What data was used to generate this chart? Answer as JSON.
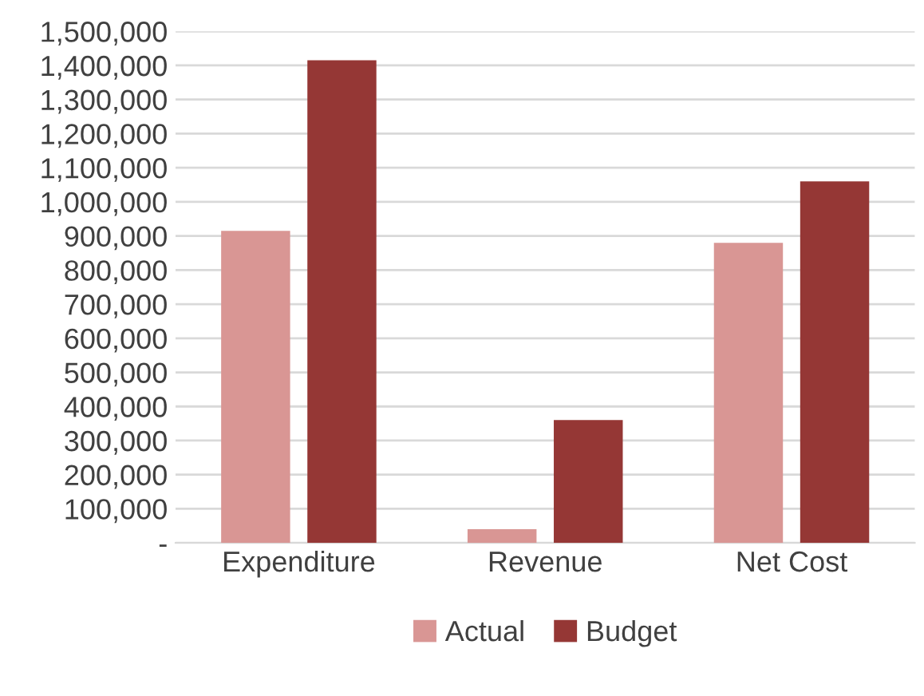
{
  "chart_data": {
    "type": "bar",
    "categories": [
      "Expenditure",
      "Revenue",
      "Net Cost"
    ],
    "series": [
      {
        "name": "Actual",
        "color": "#d99694",
        "values": [
          915000,
          40000,
          880000
        ]
      },
      {
        "name": "Budget",
        "color": "#953735",
        "values": [
          1415000,
          360000,
          1060000
        ]
      }
    ],
    "ylim": [
      0,
      1500000
    ],
    "yticks": [
      {
        "value": 0,
        "label": "-"
      },
      {
        "value": 100000,
        "label": "100,000"
      },
      {
        "value": 200000,
        "label": "200,000"
      },
      {
        "value": 300000,
        "label": "300,000"
      },
      {
        "value": 400000,
        "label": "400,000"
      },
      {
        "value": 500000,
        "label": "500,000"
      },
      {
        "value": 600000,
        "label": "600,000"
      },
      {
        "value": 700000,
        "label": "700,000"
      },
      {
        "value": 800000,
        "label": "800,000"
      },
      {
        "value": 900000,
        "label": "900,000"
      },
      {
        "value": 1000000,
        "label": "1,000,000"
      },
      {
        "value": 1100000,
        "label": "1,100,000"
      },
      {
        "value": 1200000,
        "label": "1,200,000"
      },
      {
        "value": 1300000,
        "label": "1,300,000"
      },
      {
        "value": 1400000,
        "label": "1,400,000"
      },
      {
        "value": 1500000,
        "label": "1,500,000"
      }
    ],
    "grid": "y",
    "legend": "bottom"
  }
}
